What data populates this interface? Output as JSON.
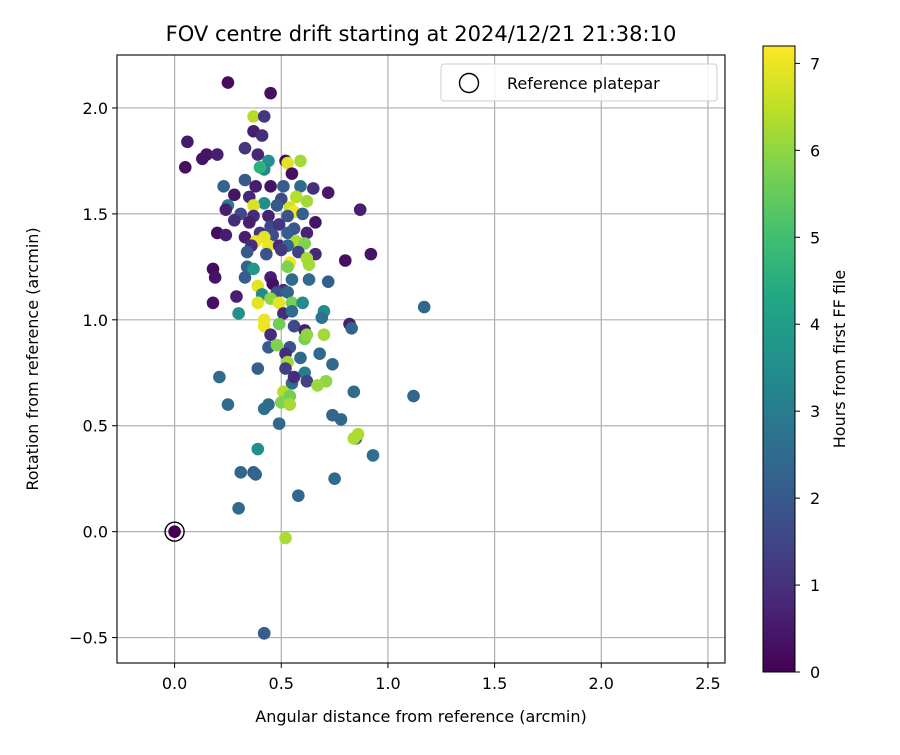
{
  "chart_data": {
    "type": "scatter",
    "title": "FOV centre drift starting at 2024/12/21 21:38:10",
    "xlabel": "Angular distance from reference (arcmin)",
    "ylabel": "Rotation from reference (arcmin)",
    "xlim": [
      -0.27,
      2.58
    ],
    "ylim": [
      -0.62,
      2.25
    ],
    "xticks": [
      0.0,
      0.5,
      1.0,
      1.5,
      2.0,
      2.5
    ],
    "xtick_labels": [
      "0.0",
      "0.5",
      "1.0",
      "1.5",
      "2.0",
      "2.5"
    ],
    "yticks": [
      -0.5,
      0.0,
      0.5,
      1.0,
      1.5,
      2.0
    ],
    "ytick_labels": [
      "−0.5",
      "0.0",
      "0.5",
      "1.0",
      "1.5",
      "2.0"
    ],
    "grid": true,
    "legend": {
      "position": "upper-right",
      "label": "Reference platepar"
    },
    "colorbar": {
      "label": "Hours from first FF file",
      "range": [
        0,
        7.2
      ],
      "ticks": [
        0,
        1,
        2,
        3,
        4,
        5,
        6,
        7
      ],
      "tick_labels": [
        "0",
        "1",
        "2",
        "3",
        "4",
        "5",
        "6",
        "7"
      ],
      "colormap": "viridis"
    },
    "reference_point": {
      "x": 0.0,
      "y": 0.0,
      "c": 0.0
    },
    "points": [
      [
        0.25,
        2.12,
        0.2
      ],
      [
        0.45,
        2.07,
        0.3
      ],
      [
        0.37,
        1.96,
        6.4
      ],
      [
        0.42,
        1.96,
        1.2
      ],
      [
        0.06,
        1.84,
        0.5
      ],
      [
        0.37,
        1.89,
        0.6
      ],
      [
        0.41,
        1.87,
        0.9
      ],
      [
        0.15,
        1.78,
        0.4
      ],
      [
        0.2,
        1.78,
        0.6
      ],
      [
        0.13,
        1.76,
        0.4
      ],
      [
        0.05,
        1.72,
        0.3
      ],
      [
        0.33,
        1.81,
        1.1
      ],
      [
        0.39,
        1.78,
        0.8
      ],
      [
        0.44,
        1.75,
        3.6
      ],
      [
        0.42,
        1.71,
        3.3
      ],
      [
        0.4,
        1.72,
        4.6
      ],
      [
        0.52,
        1.75,
        0.2
      ],
      [
        0.53,
        1.74,
        6.9
      ],
      [
        0.59,
        1.75,
        6.2
      ],
      [
        0.55,
        1.69,
        0.3
      ],
      [
        0.23,
        1.63,
        2.3
      ],
      [
        0.33,
        1.66,
        2.0
      ],
      [
        0.38,
        1.63,
        0.6
      ],
      [
        0.45,
        1.63,
        0.4
      ],
      [
        0.51,
        1.63,
        2.1
      ],
      [
        0.59,
        1.63,
        2.5
      ],
      [
        0.65,
        1.62,
        1.0
      ],
      [
        0.72,
        1.6,
        0.5
      ],
      [
        0.28,
        1.59,
        0.4
      ],
      [
        0.35,
        1.58,
        0.8
      ],
      [
        0.42,
        1.55,
        3.5
      ],
      [
        0.5,
        1.57,
        1.6
      ],
      [
        0.57,
        1.58,
        6.4
      ],
      [
        0.62,
        1.56,
        6.2
      ],
      [
        0.25,
        1.54,
        2.9
      ],
      [
        0.37,
        1.54,
        6.8
      ],
      [
        0.48,
        1.54,
        2.0
      ],
      [
        0.54,
        1.53,
        6.7
      ],
      [
        0.56,
        1.51,
        7.1
      ],
      [
        0.6,
        1.5,
        2.2
      ],
      [
        0.87,
        1.52,
        0.6
      ],
      [
        0.24,
        1.52,
        0.6
      ],
      [
        0.31,
        1.5,
        1.6
      ],
      [
        0.37,
        1.49,
        0.9
      ],
      [
        0.44,
        1.49,
        0.7
      ],
      [
        0.53,
        1.49,
        1.8
      ],
      [
        0.66,
        1.46,
        0.4
      ],
      [
        0.28,
        1.47,
        0.9
      ],
      [
        0.35,
        1.46,
        0.6
      ],
      [
        0.45,
        1.44,
        1.5
      ],
      [
        0.49,
        1.45,
        1.1
      ],
      [
        0.56,
        1.43,
        2.0
      ],
      [
        0.2,
        1.41,
        0.2
      ],
      [
        0.24,
        1.4,
        0.6
      ],
      [
        0.33,
        1.39,
        0.6
      ],
      [
        0.4,
        1.41,
        1.2
      ],
      [
        0.46,
        1.4,
        1.7
      ],
      [
        0.53,
        1.41,
        2.1
      ],
      [
        0.62,
        1.41,
        0.7
      ],
      [
        0.42,
        1.39,
        6.9
      ],
      [
        0.38,
        1.37,
        7.0
      ],
      [
        0.44,
        1.35,
        7.0
      ],
      [
        0.57,
        1.37,
        6.3
      ],
      [
        0.61,
        1.36,
        5.8
      ],
      [
        0.36,
        1.35,
        0.9
      ],
      [
        0.49,
        1.35,
        0.8
      ],
      [
        0.53,
        1.35,
        2.3
      ],
      [
        0.34,
        1.32,
        2.0
      ],
      [
        0.43,
        1.31,
        1.8
      ],
      [
        0.5,
        1.33,
        1.2
      ],
      [
        0.58,
        1.32,
        1.4
      ],
      [
        0.66,
        1.31,
        0.8
      ],
      [
        0.92,
        1.31,
        0.4
      ],
      [
        0.54,
        1.27,
        7.1
      ],
      [
        0.62,
        1.29,
        6.3
      ],
      [
        0.53,
        1.25,
        5.8
      ],
      [
        0.18,
        1.24,
        0.2
      ],
      [
        0.34,
        1.25,
        2.3
      ],
      [
        0.37,
        1.24,
        3.8
      ],
      [
        0.63,
        1.26,
        6.2
      ],
      [
        0.8,
        1.28,
        0.3
      ],
      [
        0.19,
        1.2,
        0.4
      ],
      [
        0.33,
        1.2,
        2.1
      ],
      [
        0.45,
        1.2,
        0.6
      ],
      [
        0.55,
        1.19,
        2.5
      ],
      [
        0.63,
        1.19,
        2.5
      ],
      [
        0.72,
        1.18,
        2.2
      ],
      [
        0.39,
        1.16,
        6.9
      ],
      [
        0.46,
        1.17,
        0.3
      ],
      [
        0.51,
        1.14,
        0.9
      ],
      [
        0.29,
        1.11,
        0.6
      ],
      [
        0.41,
        1.12,
        3.5
      ],
      [
        0.48,
        1.13,
        1.8
      ],
      [
        0.53,
        1.13,
        2.3
      ],
      [
        0.18,
        1.08,
        0.3
      ],
      [
        0.39,
        1.08,
        6.9
      ],
      [
        0.45,
        1.1,
        6.0
      ],
      [
        0.49,
        1.08,
        6.9
      ],
      [
        0.55,
        1.08,
        5.7
      ],
      [
        0.6,
        1.08,
        3.4
      ],
      [
        0.3,
        1.03,
        3.6
      ],
      [
        0.51,
        1.03,
        0.9
      ],
      [
        0.55,
        1.04,
        2.5
      ],
      [
        0.7,
        1.04,
        3.5
      ],
      [
        1.17,
        1.06,
        2.4
      ],
      [
        0.42,
        1.0,
        7.0
      ],
      [
        0.42,
        0.97,
        7.0
      ],
      [
        0.49,
        0.98,
        5.6
      ],
      [
        0.56,
        0.97,
        1.6
      ],
      [
        0.69,
        1.01,
        2.7
      ],
      [
        0.61,
        0.95,
        0.6
      ],
      [
        0.82,
        0.98,
        0.6
      ],
      [
        0.83,
        0.96,
        2.3
      ],
      [
        0.45,
        0.93,
        0.9
      ],
      [
        0.61,
        0.91,
        5.7
      ],
      [
        0.62,
        0.93,
        6.0
      ],
      [
        0.7,
        0.93,
        6.2
      ],
      [
        0.44,
        0.87,
        2.1
      ],
      [
        0.48,
        0.88,
        5.8
      ],
      [
        0.54,
        0.87,
        1.8
      ],
      [
        0.52,
        0.84,
        0.9
      ],
      [
        0.68,
        0.84,
        2.5
      ],
      [
        0.59,
        0.82,
        2.4
      ],
      [
        0.53,
        0.8,
        6.2
      ],
      [
        0.74,
        0.79,
        2.5
      ],
      [
        0.21,
        0.73,
        2.5
      ],
      [
        0.39,
        0.77,
        2.2
      ],
      [
        0.52,
        0.77,
        1.3
      ],
      [
        0.61,
        0.75,
        3.0
      ],
      [
        0.55,
        0.7,
        2.5
      ],
      [
        0.56,
        0.73,
        0.9
      ],
      [
        0.62,
        0.71,
        1.4
      ],
      [
        0.71,
        0.71,
        6.0
      ],
      [
        0.67,
        0.69,
        6.1
      ],
      [
        0.51,
        0.66,
        6.4
      ],
      [
        0.54,
        0.64,
        5.7
      ],
      [
        0.44,
        0.6,
        2.5
      ],
      [
        0.25,
        0.6,
        2.5
      ],
      [
        0.42,
        0.58,
        2.6
      ],
      [
        0.5,
        0.61,
        5.8
      ],
      [
        0.54,
        0.6,
        6.2
      ],
      [
        0.84,
        0.66,
        2.5
      ],
      [
        1.12,
        0.64,
        2.4
      ],
      [
        0.74,
        0.55,
        2.4
      ],
      [
        0.78,
        0.53,
        2.4
      ],
      [
        0.49,
        0.51,
        2.4
      ],
      [
        0.85,
        0.44,
        2.4
      ],
      [
        0.86,
        0.46,
        6.3
      ],
      [
        0.84,
        0.44,
        6.3
      ],
      [
        0.93,
        0.36,
        2.6
      ],
      [
        0.39,
        0.39,
        3.5
      ],
      [
        0.31,
        0.28,
        2.4
      ],
      [
        0.37,
        0.28,
        2.1
      ],
      [
        0.38,
        0.27,
        2.3
      ],
      [
        0.75,
        0.25,
        2.5
      ],
      [
        0.58,
        0.17,
        2.4
      ],
      [
        0.3,
        0.11,
        2.5
      ],
      [
        0.52,
        -0.03,
        6.3
      ],
      [
        0.42,
        -0.48,
        2.1
      ],
      [
        0.42,
        -0.48,
        2.1
      ]
    ]
  }
}
